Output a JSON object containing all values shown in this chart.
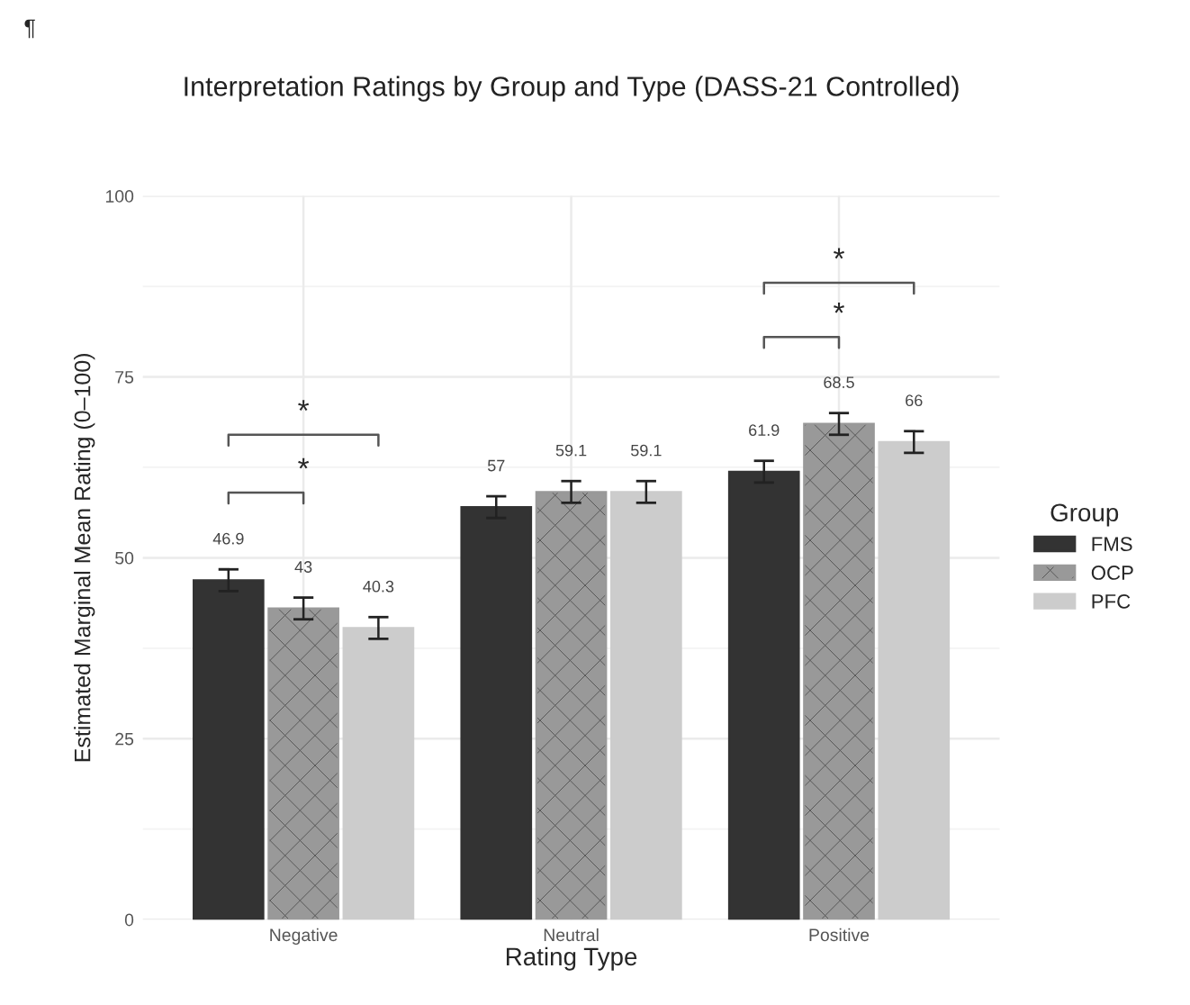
{
  "chart_data": {
    "type": "bar",
    "title": "Interpretation Ratings by Group and Type (DASS-21 Controlled)",
    "xlabel": "Rating Type",
    "ylabel": "Estimated Marginal Mean Rating (0–100)",
    "legend_title": "Group",
    "categories": [
      "Negative",
      "Neutral",
      "Positive"
    ],
    "series": [
      {
        "name": "FMS",
        "color": "#333333",
        "values": [
          46.9,
          57,
          61.9
        ],
        "errors": [
          1.5,
          1.5,
          1.5
        ]
      },
      {
        "name": "OCP",
        "color": "#999999",
        "values": [
          43,
          59.1,
          68.5
        ],
        "errors": [
          1.5,
          1.5,
          1.5
        ]
      },
      {
        "name": "PFC",
        "color": "#cccccc",
        "values": [
          40.3,
          59.1,
          66
        ],
        "errors": [
          1.5,
          1.5,
          1.5
        ]
      }
    ],
    "ylim": [
      0,
      100
    ],
    "yticks": [
      0,
      25,
      50,
      75,
      100
    ],
    "grid": true,
    "legend": "right",
    "data_labels": true,
    "annotations": [
      "¶",
      "*",
      "*",
      "*",
      "*"
    ]
  }
}
